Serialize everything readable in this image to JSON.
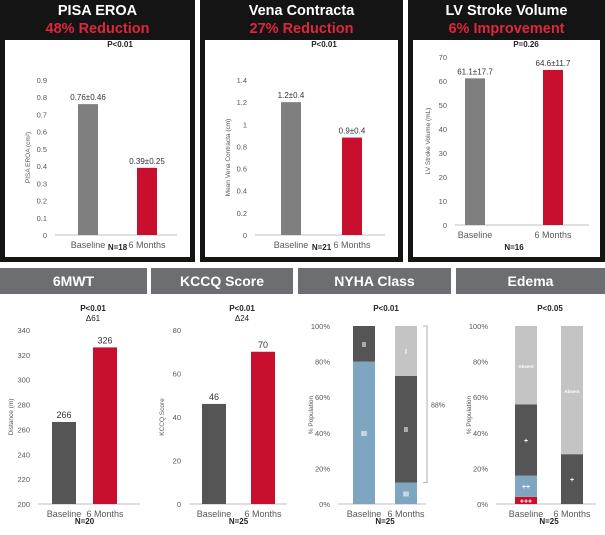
{
  "colors": {
    "gray_bar": "#7f7f7f",
    "red_bar": "#c8102e",
    "dark_bar": "#555555",
    "blue": "#7ea6c1",
    "light_gray": "#c4c4c4",
    "header_dark": "#141414",
    "header_gray": "#6d6e72",
    "title_red": "#e0263a"
  },
  "panels": [
    {
      "id": "pisa",
      "title": "PISA EROA",
      "subtitle": "48% Reduction",
      "p_value": "P<0.01",
      "n": "N=18"
    },
    {
      "id": "vena",
      "title": "Vena Contracta",
      "subtitle": "27% Reduction",
      "p_value": "P<0.01",
      "n": "N=21"
    },
    {
      "id": "lvsv",
      "title": "LV Stroke Volume",
      "subtitle": "6% Improvement",
      "p_value": "P=0.26",
      "n": "N=16"
    },
    {
      "id": "sixmwt",
      "title": "6MWT",
      "p_value": "P<0.01",
      "delta": "Δ61",
      "n": "N=20"
    },
    {
      "id": "kccq",
      "title": "KCCQ Score",
      "p_value": "P<0.01",
      "delta": "Δ24",
      "n": "N=25"
    },
    {
      "id": "nyha",
      "title": "NYHA Class",
      "p_value": "P<0.01",
      "n": "N=25"
    },
    {
      "id": "edema",
      "title": "Edema",
      "p_value": "P<0.05",
      "n": "N=25"
    }
  ],
  "chart_data": [
    {
      "id": "pisa",
      "type": "bar",
      "title": "PISA EROA",
      "ylabel": "PISA EROA (cm²)",
      "ylim": [
        0,
        0.9
      ],
      "yticks": [
        "0",
        "0.1",
        "0.2",
        "0.3",
        "0.4",
        "0.5",
        "0.6",
        "0.7",
        "0.8",
        "0.9"
      ],
      "ytick_values": [
        0,
        0.1,
        0.2,
        0.3,
        0.4,
        0.5,
        0.6,
        0.7,
        0.8,
        0.9
      ],
      "categories": [
        "Baseline",
        "6 Months"
      ],
      "values": [
        0.76,
        0.39
      ],
      "labels": [
        "0.76±0.46",
        "0.39±0.25"
      ],
      "colors": [
        "#7f7f7f",
        "#c8102e"
      ]
    },
    {
      "id": "vena",
      "type": "bar",
      "title": "Vena Contracta",
      "ylabel": "Mean Vena Contracta (cm)",
      "ylim": [
        0,
        1.4
      ],
      "yticks": [
        "0",
        "0.2",
        "0.4",
        "0.6",
        "0.8",
        "1",
        "1.2",
        "1.4"
      ],
      "ytick_values": [
        0,
        0.2,
        0.4,
        0.6,
        0.8,
        1,
        1.2,
        1.4
      ],
      "categories": [
        "Baseline",
        "6 Months"
      ],
      "values": [
        1.2,
        0.88
      ],
      "labels": [
        "1.2±0.4",
        "0.9±0.4"
      ],
      "colors": [
        "#7f7f7f",
        "#c8102e"
      ]
    },
    {
      "id": "lvsv",
      "type": "bar",
      "title": "LV Stroke Volume",
      "ylabel": "LV Stroke Volume (mL)",
      "ylim": [
        0,
        70
      ],
      "yticks": [
        "0",
        "10",
        "20",
        "30",
        "40",
        "50",
        "60",
        "70"
      ],
      "ytick_values": [
        0,
        10,
        20,
        30,
        40,
        50,
        60,
        70
      ],
      "categories": [
        "Baseline",
        "6 Months"
      ],
      "values": [
        61.1,
        64.6
      ],
      "labels": [
        "61.1±17.7",
        "64.6±11.7"
      ],
      "colors": [
        "#7f7f7f",
        "#c8102e"
      ]
    },
    {
      "id": "sixmwt",
      "type": "bar",
      "title": "6MWT",
      "ylabel": "Distance (m)",
      "ylim": [
        200,
        340
      ],
      "yticks": [
        "200",
        "220",
        "240",
        "260",
        "280",
        "300",
        "320",
        "340"
      ],
      "ytick_values": [
        200,
        220,
        240,
        260,
        280,
        300,
        320,
        340
      ],
      "categories": [
        "Baseline",
        "6 Months"
      ],
      "values": [
        266,
        326
      ],
      "labels": [
        "266",
        "326"
      ],
      "colors": [
        "#555555",
        "#c8102e"
      ]
    },
    {
      "id": "kccq",
      "type": "bar",
      "title": "KCCQ Score",
      "ylabel": "KCCQ Score",
      "ylim": [
        0,
        80
      ],
      "yticks": [
        "0",
        "20",
        "40",
        "60",
        "80"
      ],
      "ytick_values": [
        0,
        20,
        40,
        60,
        80
      ],
      "categories": [
        "Baseline",
        "6 Months"
      ],
      "values": [
        46,
        70
      ],
      "labels": [
        "46",
        "70"
      ],
      "colors": [
        "#555555",
        "#c8102e"
      ]
    },
    {
      "id": "nyha",
      "type": "stacked_bar",
      "title": "NYHA Class",
      "ylabel": "% Population",
      "ylim": [
        0,
        100
      ],
      "yticks": [
        "0%",
        "20%",
        "40%",
        "60%",
        "80%",
        "100%"
      ],
      "ytick_values": [
        0,
        20,
        40,
        60,
        80,
        100
      ],
      "categories": [
        "Baseline",
        "6 Months"
      ],
      "series": [
        {
          "name": "III",
          "values": [
            80,
            12
          ],
          "color": "#7ea6c1"
        },
        {
          "name": "II",
          "values": [
            20,
            60
          ],
          "color": "#555555"
        },
        {
          "name": "I",
          "values": [
            0,
            28
          ],
          "color": "#c4c4c4"
        }
      ],
      "annotation": "88%"
    },
    {
      "id": "edema",
      "type": "stacked_bar",
      "title": "Edema",
      "ylabel": "% Population",
      "ylim": [
        0,
        100
      ],
      "yticks": [
        "0%",
        "20%",
        "40%",
        "60%",
        "80%",
        "100%"
      ],
      "ytick_values": [
        0,
        20,
        40,
        60,
        80,
        100
      ],
      "categories": [
        "Baseline",
        "6 Months"
      ],
      "series": [
        {
          "name": "+++",
          "values": [
            4,
            0
          ],
          "color": "#c8102e"
        },
        {
          "name": "++",
          "values": [
            12,
            0
          ],
          "color": "#7ea6c1"
        },
        {
          "name": "+",
          "values": [
            40,
            28
          ],
          "color": "#555555"
        },
        {
          "name": "Absent",
          "values": [
            44,
            72
          ],
          "color": "#c4c4c4"
        }
      ]
    }
  ]
}
